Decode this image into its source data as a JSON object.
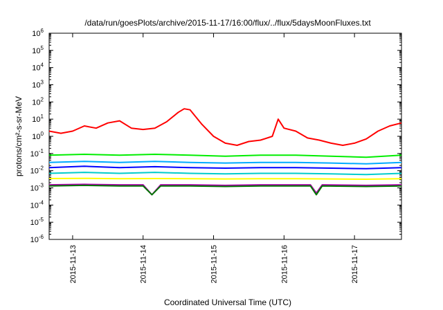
{
  "chart_data": {
    "type": "line",
    "title": "/data/run/goesPlots/archive/2015-11-17/16:00/flux/../flux/5daysMoonFluxes.txt",
    "xlabel": "Coordinated Universal Time (UTC)",
    "ylabel": "protons/cm²-s-sr-MeV",
    "x_range": [
      "2015-11-12T16:00",
      "2015-11-17T16:00"
    ],
    "x_ticks": [
      "2015-11-13",
      "2015-11-14",
      "2015-11-15",
      "2015-11-16",
      "2015-11-17"
    ],
    "y_scale": "log",
    "ylim": [
      1e-06,
      1000000.0
    ],
    "y_ticks": [
      {
        "base": "10",
        "exp": "6"
      },
      {
        "base": "10",
        "exp": "5"
      },
      {
        "base": "10",
        "exp": "4"
      },
      {
        "base": "10",
        "exp": "3"
      },
      {
        "base": "10",
        "exp": "2"
      },
      {
        "base": "10",
        "exp": "1"
      },
      {
        "base": "10",
        "exp": "0"
      },
      {
        "base": "10",
        "exp": "-1"
      },
      {
        "base": "10",
        "exp": "-2"
      },
      {
        "base": "10",
        "exp": "-3"
      },
      {
        "base": "10",
        "exp": "-4"
      },
      {
        "base": "10",
        "exp": "-5"
      },
      {
        "base": "10",
        "exp": "-6"
      }
    ],
    "grid": false,
    "legend": "none",
    "series": [
      {
        "color": "#ff0000",
        "points": [
          [
            "2015-11-12T16:00",
            2.0
          ],
          [
            "2015-11-12T20:00",
            1.5
          ],
          [
            "2015-11-13T00:00",
            2.0
          ],
          [
            "2015-11-13T04:00",
            4.0
          ],
          [
            "2015-11-13T08:00",
            3.0
          ],
          [
            "2015-11-13T12:00",
            6.0
          ],
          [
            "2015-11-13T16:00",
            8.0
          ],
          [
            "2015-11-13T20:00",
            3.0
          ],
          [
            "2015-11-14T00:00",
            2.5
          ],
          [
            "2015-11-14T04:00",
            3.0
          ],
          [
            "2015-11-14T08:00",
            7.0
          ],
          [
            "2015-11-14T12:00",
            25.0
          ],
          [
            "2015-11-14T14:00",
            40.0
          ],
          [
            "2015-11-14T16:00",
            35.0
          ],
          [
            "2015-11-14T20:00",
            5.0
          ],
          [
            "2015-11-15T00:00",
            1.0
          ],
          [
            "2015-11-15T04:00",
            0.4
          ],
          [
            "2015-11-15T08:00",
            0.3
          ],
          [
            "2015-11-15T12:00",
            0.5
          ],
          [
            "2015-11-15T16:00",
            0.6
          ],
          [
            "2015-11-15T20:00",
            1.0
          ],
          [
            "2015-11-15T22:00",
            10.0
          ],
          [
            "2015-11-16T00:00",
            3.0
          ],
          [
            "2015-11-16T04:00",
            2.0
          ],
          [
            "2015-11-16T08:00",
            0.8
          ],
          [
            "2015-11-16T12:00",
            0.6
          ],
          [
            "2015-11-16T16:00",
            0.4
          ],
          [
            "2015-11-16T20:00",
            0.3
          ],
          [
            "2015-11-17T00:00",
            0.4
          ],
          [
            "2015-11-17T04:00",
            0.7
          ],
          [
            "2015-11-17T08:00",
            2.0
          ],
          [
            "2015-11-17T12:00",
            4.0
          ],
          [
            "2015-11-17T16:00",
            6.0
          ]
        ]
      },
      {
        "color": "#00ee00",
        "points": [
          [
            "2015-11-12T16:00",
            0.08
          ],
          [
            "2015-11-13T04:00",
            0.09
          ],
          [
            "2015-11-13T16:00",
            0.08
          ],
          [
            "2015-11-14T04:00",
            0.09
          ],
          [
            "2015-11-14T16:00",
            0.08
          ],
          [
            "2015-11-15T04:00",
            0.07
          ],
          [
            "2015-11-15T16:00",
            0.08
          ],
          [
            "2015-11-16T04:00",
            0.08
          ],
          [
            "2015-11-16T16:00",
            0.07
          ],
          [
            "2015-11-17T04:00",
            0.06
          ],
          [
            "2015-11-17T16:00",
            0.08
          ]
        ]
      },
      {
        "color": "#00aaff",
        "points": [
          [
            "2015-11-12T16:00",
            0.03
          ],
          [
            "2015-11-13T04:00",
            0.035
          ],
          [
            "2015-11-13T16:00",
            0.03
          ],
          [
            "2015-11-14T04:00",
            0.035
          ],
          [
            "2015-11-14T16:00",
            0.03
          ],
          [
            "2015-11-15T04:00",
            0.028
          ],
          [
            "2015-11-15T16:00",
            0.03
          ],
          [
            "2015-11-16T04:00",
            0.03
          ],
          [
            "2015-11-16T16:00",
            0.028
          ],
          [
            "2015-11-17T04:00",
            0.025
          ],
          [
            "2015-11-17T16:00",
            0.03
          ]
        ]
      },
      {
        "color": "#0000ff",
        "points": [
          [
            "2015-11-12T16:00",
            0.015
          ],
          [
            "2015-11-13T04:00",
            0.018
          ],
          [
            "2015-11-13T16:00",
            0.015
          ],
          [
            "2015-11-14T04:00",
            0.017
          ],
          [
            "2015-11-14T16:00",
            0.015
          ],
          [
            "2015-11-15T04:00",
            0.014
          ],
          [
            "2015-11-15T16:00",
            0.015
          ],
          [
            "2015-11-16T04:00",
            0.015
          ],
          [
            "2015-11-16T16:00",
            0.014
          ],
          [
            "2015-11-17T04:00",
            0.013
          ],
          [
            "2015-11-17T16:00",
            0.015
          ]
        ]
      },
      {
        "color": "#00cccc",
        "points": [
          [
            "2015-11-12T16:00",
            0.007
          ],
          [
            "2015-11-13T04:00",
            0.008
          ],
          [
            "2015-11-13T16:00",
            0.007
          ],
          [
            "2015-11-14T04:00",
            0.008
          ],
          [
            "2015-11-14T16:00",
            0.007
          ],
          [
            "2015-11-15T04:00",
            0.0065
          ],
          [
            "2015-11-15T16:00",
            0.007
          ],
          [
            "2015-11-16T04:00",
            0.007
          ],
          [
            "2015-11-16T16:00",
            0.0065
          ],
          [
            "2015-11-17T04:00",
            0.006
          ],
          [
            "2015-11-17T16:00",
            0.007
          ]
        ]
      },
      {
        "color": "#ffff00",
        "points": [
          [
            "2015-11-12T16:00",
            0.0035
          ],
          [
            "2015-11-13T04:00",
            0.0036
          ],
          [
            "2015-11-13T16:00",
            0.0034
          ],
          [
            "2015-11-14T04:00",
            0.0035
          ],
          [
            "2015-11-14T16:00",
            0.0034
          ],
          [
            "2015-11-15T04:00",
            0.0033
          ],
          [
            "2015-11-15T16:00",
            0.0034
          ],
          [
            "2015-11-16T04:00",
            0.0034
          ],
          [
            "2015-11-16T16:00",
            0.0033
          ],
          [
            "2015-11-17T04:00",
            0.0032
          ],
          [
            "2015-11-17T16:00",
            0.0034
          ]
        ]
      },
      {
        "color": "#aa00aa",
        "points": [
          [
            "2015-11-12T16:00",
            0.0015
          ],
          [
            "2015-11-13T04:00",
            0.0016
          ],
          [
            "2015-11-13T16:00",
            0.0015
          ],
          [
            "2015-11-14T00:00",
            0.0015
          ],
          [
            "2015-11-14T03:00",
            0.0004
          ],
          [
            "2015-11-14T06:00",
            0.0015
          ],
          [
            "2015-11-14T16:00",
            0.0015
          ],
          [
            "2015-11-15T04:00",
            0.0014
          ],
          [
            "2015-11-15T16:00",
            0.0015
          ],
          [
            "2015-11-16T04:00",
            0.0015
          ],
          [
            "2015-11-16T09:00",
            0.0015
          ],
          [
            "2015-11-16T11:00",
            0.0005
          ],
          [
            "2015-11-16T13:00",
            0.0015
          ],
          [
            "2015-11-17T04:00",
            0.0014
          ],
          [
            "2015-11-17T16:00",
            0.0015
          ]
        ]
      },
      {
        "color": "#007700",
        "points": [
          [
            "2015-11-12T16:00",
            0.0013
          ],
          [
            "2015-11-13T04:00",
            0.0014
          ],
          [
            "2015-11-13T16:00",
            0.0013
          ],
          [
            "2015-11-14T00:00",
            0.0013
          ],
          [
            "2015-11-14T03:00",
            0.0004
          ],
          [
            "2015-11-14T06:00",
            0.0013
          ],
          [
            "2015-11-14T16:00",
            0.0013
          ],
          [
            "2015-11-15T04:00",
            0.0012
          ],
          [
            "2015-11-15T16:00",
            0.0013
          ],
          [
            "2015-11-16T04:00",
            0.0013
          ],
          [
            "2015-11-16T09:00",
            0.0013
          ],
          [
            "2015-11-16T11:00",
            0.0004
          ],
          [
            "2015-11-16T13:00",
            0.0013
          ],
          [
            "2015-11-17T04:00",
            0.0012
          ],
          [
            "2015-11-17T16:00",
            0.0013
          ]
        ]
      }
    ]
  }
}
